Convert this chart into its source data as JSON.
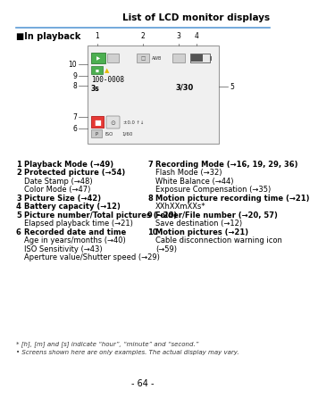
{
  "title": "List of LCD monitor displays",
  "section_header": "■In playback",
  "bg_color": "#ffffff",
  "page_number": "- 64 -",
  "title_line_color": "#5b9bd5",
  "footnotes": [
    "* [h], [m] and [s] indicate “hour”, “minute” and “second.”",
    "• Screens shown here are only examples. The actual display may vary."
  ],
  "col1_items": [
    {
      "num": "1",
      "bold": true,
      "lines": [
        "Playback Mode (→49)"
      ]
    },
    {
      "num": "2",
      "bold": true,
      "lines": [
        "Protected picture (→54)",
        "Date Stamp (→48)",
        "Color Mode (→47)"
      ]
    },
    {
      "num": "3",
      "bold": true,
      "lines": [
        "Picture Size (→42)"
      ]
    },
    {
      "num": "4",
      "bold": true,
      "lines": [
        "Battery capacity (→12)"
      ]
    },
    {
      "num": "5",
      "bold": true,
      "lines": [
        "Picture number/Total pictures (→20)",
        "Elapsed playback time (→21)"
      ]
    },
    {
      "num": "6",
      "bold": true,
      "lines": [
        "Recorded date and time",
        "Age in years/months (→40)",
        "ISO Sensitivity (→43)",
        "Aperture value/Shutter speed (→29)"
      ]
    }
  ],
  "col2_items": [
    {
      "num": "7",
      "bold": true,
      "lines": [
        "Recording Mode (→16, 19, 29, 36)",
        "Flash Mode (→32)",
        "White Balance (→44)",
        "Exposure Compensation (→35)"
      ]
    },
    {
      "num": "8",
      "bold": true,
      "lines": [
        "Motion picture recording time (→21)",
        "XXhXXmXXs*"
      ]
    },
    {
      "num": "9",
      "bold": true,
      "lines": [
        "Folder/File number (→20, 57)",
        "Save destination (→12)"
      ]
    },
    {
      "num": "10",
      "bold": true,
      "lines": [
        "Motion pictures (→21)",
        "Cable disconnection warning icon",
        "(→59)"
      ]
    }
  ]
}
